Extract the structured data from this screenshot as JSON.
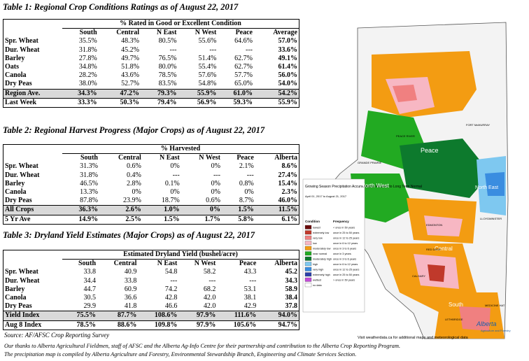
{
  "table1": {
    "title": "Table 1: Regional Crop Conditions Ratings as of August 22, 2017",
    "span_header": "% Rated in Good or Excellent Condition",
    "columns": [
      "South",
      "Central",
      "N East",
      "N West",
      "Peace",
      "Average"
    ],
    "rows": [
      {
        "label": "Spr. Wheat",
        "values": [
          "35.5%",
          "48.3%",
          "80.5%",
          "55.6%",
          "64.6%",
          "57.0%"
        ]
      },
      {
        "label": "Dur. Wheat",
        "values": [
          "31.8%",
          "45.2%",
          "---",
          "---",
          "---",
          "33.6%"
        ]
      },
      {
        "label": "Barley",
        "values": [
          "27.8%",
          "49.7%",
          "76.5%",
          "51.4%",
          "62.7%",
          "49.1%"
        ]
      },
      {
        "label": "Oats",
        "values": [
          "34.8%",
          "51.8%",
          "80.0%",
          "55.4%",
          "62.7%",
          "61.4%"
        ]
      },
      {
        "label": "Canola",
        "values": [
          "28.2%",
          "43.6%",
          "78.5%",
          "57.6%",
          "57.7%",
          "56.0%"
        ]
      },
      {
        "label": "Dry Peas",
        "values": [
          "38.0%",
          "52.7%",
          "83.5%",
          "54.8%",
          "65.0%",
          "54.0%"
        ]
      },
      {
        "label": "Region Ave.",
        "values": [
          "34.3%",
          "47.2%",
          "79.3%",
          "55.9%",
          "61.0%",
          "54.2%"
        ]
      },
      {
        "label": "Last Week",
        "values": [
          "33.3%",
          "50.3%",
          "79.4%",
          "56.9%",
          "59.3%",
          "55.9%"
        ]
      }
    ]
  },
  "table2": {
    "title": "Table 2: Regional Harvest Progress (Major Crops) as of August 22, 2017",
    "span_header": "% Harvested",
    "columns": [
      "South",
      "Central",
      "N East",
      "N West",
      "Peace",
      "Alberta"
    ],
    "rows": [
      {
        "label": "Spr. Wheat",
        "values": [
          "31.3%",
          "0.6%",
          "0%",
          "0%",
          "2.1%",
          "8.6%"
        ]
      },
      {
        "label": "Dur. Wheat",
        "values": [
          "31.8%",
          "0.4%",
          "---",
          "---",
          "---",
          "27.4%"
        ]
      },
      {
        "label": "Barley",
        "values": [
          "46.5%",
          "2.8%",
          "0.1%",
          "0%",
          "0.8%",
          "15.4%"
        ]
      },
      {
        "label": "Canola",
        "values": [
          "13.3%",
          "0%",
          "0%",
          "0%",
          "0%",
          "2.3%"
        ]
      },
      {
        "label": "Dry Peas",
        "values": [
          "87.8%",
          "23.9%",
          "18.7%",
          "0.6%",
          "8.7%",
          "46.0%"
        ]
      },
      {
        "label": "All Crops",
        "values": [
          "36.3%",
          "2.6%",
          "1.0%",
          "0%",
          "1.5%",
          "11.5%"
        ]
      },
      {
        "label": "5 Yr Ave",
        "values": [
          "14.9%",
          "2.5%",
          "1.5%",
          "1.7%",
          "5.8%",
          "6.1%"
        ]
      }
    ]
  },
  "table3": {
    "title": "Table 3: Dryland Yield Estimates (Major Crops) as of August 22, 2017",
    "span_header": "Estimated Dryland Yield (bushel/acre)",
    "columns": [
      "South",
      "Central",
      "N East",
      "N West",
      "Peace",
      "Alberta"
    ],
    "rows": [
      {
        "label": "Spr. Wheat",
        "values": [
          "33.8",
          "40.9",
          "54.8",
          "58.2",
          "43.3",
          "45.2"
        ]
      },
      {
        "label": "Dur. Wheat",
        "values": [
          "34.4",
          "33.8",
          "---",
          "---",
          "---",
          "34.3"
        ]
      },
      {
        "label": "Barley",
        "values": [
          "44.7",
          "60.9",
          "74.2",
          "68.2",
          "53.1",
          "58.9"
        ]
      },
      {
        "label": "Canola",
        "values": [
          "30.5",
          "36.6",
          "42.8",
          "42.0",
          "38.1",
          "38.4"
        ]
      },
      {
        "label": "Dry Peas",
        "values": [
          "29.9",
          "41.8",
          "46.6",
          "42.0",
          "42.9",
          "37.8"
        ]
      },
      {
        "label": "Yield Index",
        "values": [
          "75.5%",
          "87.7%",
          "108.6%",
          "97.9%",
          "111.6%",
          "94.0%"
        ]
      },
      {
        "label": "Aug 8 Index",
        "values": [
          "78.5%",
          "88.6%",
          "109.8%",
          "97.9%",
          "105.6%",
          "94.7%"
        ]
      }
    ]
  },
  "source": "Source: AF/AFSC Crop Reporting Survey",
  "footer1": "Our thanks to Alberta Agricultural Fieldmen, staff of AFSC and the Alberta Ag-Info Centre for their partnership and contribution to the Alberta Crop Reporting Program.",
  "footer2": "The precipitation map is compiled by Alberta Agriculture and Forestry, Environmental Stewardship Branch, Engineering and Climate Services Section.",
  "map": {
    "legend_title": "Growing Season Precipitation Accumulations Relative to Long Term Normal",
    "date_range": "April 01, 2017 to August 21, 2017",
    "condition_header": "Condition",
    "frequency_header": "Frequency",
    "legend": [
      {
        "condition": "lowest",
        "frequency": "< once in 50 years",
        "color": "#6b0b0b"
      },
      {
        "condition": "extremely low",
        "frequency": "once in 25 to 50 years",
        "color": "#c0392b"
      },
      {
        "condition": "very low",
        "frequency": "once in 12 to 25 years",
        "color": "#f08080"
      },
      {
        "condition": "low",
        "frequency": "once in 6 to 12 years",
        "color": "#f7b7c3"
      },
      {
        "condition": "moderately low",
        "frequency": "once in 3 to 6 years",
        "color": "#f39c12"
      },
      {
        "condition": "near normal",
        "frequency": "once in 3 years",
        "color": "#22aa22"
      },
      {
        "condition": "moderately high",
        "frequency": "once in 3 to 6 years",
        "color": "#0d7a2d"
      },
      {
        "condition": "high",
        "frequency": "once in 6 to 12 years",
        "color": "#7ec8f0"
      },
      {
        "condition": "very high",
        "frequency": "once in 12 to 25 years",
        "color": "#3a8de0"
      },
      {
        "condition": "extremely high",
        "frequency": "once in 25 to 50 years",
        "color": "#2b3fa8"
      },
      {
        "condition": "wettest",
        "frequency": "> once in 50 years",
        "color": "#c24bd8"
      },
      {
        "condition": "no data",
        "frequency": "",
        "color": "#ffffff"
      }
    ],
    "region_labels": [
      "Peace",
      "North West",
      "North East",
      "Central",
      "South"
    ],
    "town_labels": [
      "FORT McMURRAY",
      "PEACE RIVER",
      "GRANDE PRAIRIE",
      "EDMONTON",
      "RED DEER",
      "CALGARY",
      "LETHBRIDGE",
      "MEDICINE HAT",
      "LLOYDMINSTER"
    ],
    "visit_text": "Visit weatherdata.ca for additional maps and meteorological data",
    "logo_text": "Alberta",
    "logo_sub": "Agriculture and Forestry"
  }
}
